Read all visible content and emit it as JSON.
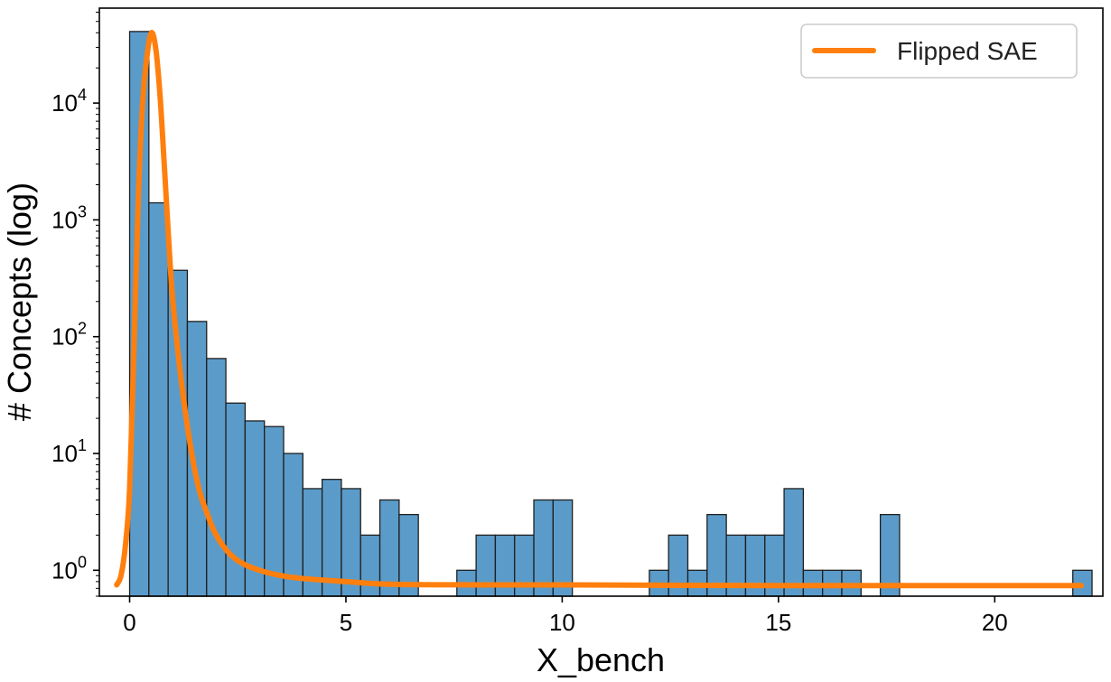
{
  "chart_data": {
    "type": "bar",
    "title": "",
    "xlabel": "X_bench",
    "ylabel": "# Concepts (log)",
    "y_scale": "log",
    "xlim": [
      -0.7,
      22.5
    ],
    "ylim": [
      0.6,
      65000
    ],
    "grid": false,
    "legend_position": "top-right",
    "x_ticks": [
      0,
      5,
      10,
      15,
      20
    ],
    "x_tick_labels": [
      "0",
      "5",
      "10",
      "15",
      "20"
    ],
    "y_ticks": [
      1,
      10,
      100,
      1000,
      10000
    ],
    "y_tick_labels": [
      {
        "base": "10",
        "exp": "0"
      },
      {
        "base": "10",
        "exp": "1"
      },
      {
        "base": "10",
        "exp": "2"
      },
      {
        "base": "10",
        "exp": "3"
      },
      {
        "base": "10",
        "exp": "4"
      }
    ],
    "bin_edges_start": 0.0,
    "bin_width": 0.445,
    "counts": [
      41000,
      1400,
      370,
      135,
      65,
      27,
      19,
      17,
      10,
      5,
      6,
      5,
      2,
      4,
      3,
      0,
      0,
      1,
      2,
      2,
      2,
      4,
      4,
      0,
      0,
      0,
      0,
      1,
      2,
      1,
      3,
      2,
      2,
      2,
      5,
      1,
      1,
      1,
      0,
      3,
      0,
      0,
      0,
      0,
      0,
      0,
      0,
      0,
      0,
      1
    ],
    "bar_color": "#5b9bc9",
    "bar_edge_color": "#1f1f1f",
    "series": [
      {
        "name": "Flipped SAE",
        "color": "#ff7f0e",
        "x": [
          -0.3,
          -0.2,
          -0.1,
          0.0,
          0.1,
          0.2,
          0.3,
          0.4,
          0.5,
          0.6,
          0.7,
          0.8,
          0.9,
          1.0,
          1.2,
          1.4,
          1.6,
          1.8,
          2.0,
          2.3,
          2.6,
          3.0,
          3.5,
          4.0,
          5.0,
          6.0,
          8.0,
          10.0,
          15.0,
          20.0,
          22.0
        ],
        "y": [
          0.75,
          0.9,
          1.6,
          5,
          80,
          1500,
          10000,
          25000,
          40000,
          30000,
          12000,
          3000,
          700,
          200,
          40,
          12,
          5,
          3,
          2,
          1.4,
          1.15,
          1.0,
          0.9,
          0.85,
          0.8,
          0.76,
          0.75,
          0.75,
          0.74,
          0.74,
          0.74
        ]
      }
    ]
  }
}
